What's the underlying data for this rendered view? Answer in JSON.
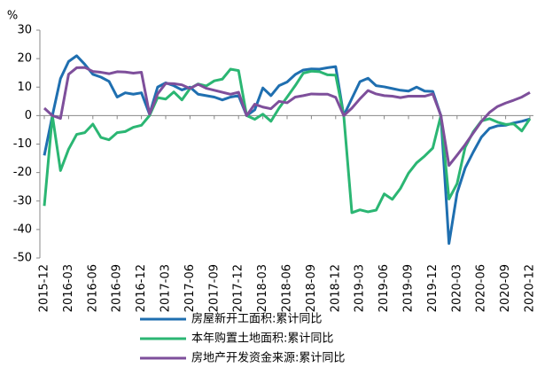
{
  "chart_data": {
    "type": "line",
    "y_label": "%",
    "categories": [
      "2015-12",
      null,
      null,
      "2016-03",
      null,
      null,
      "2016-06",
      null,
      null,
      "2016-09",
      null,
      null,
      "2016-12",
      null,
      null,
      "2017-03",
      null,
      null,
      "2017-06",
      null,
      null,
      "2017-09",
      null,
      null,
      "2017-12",
      null,
      null,
      "2018-03",
      null,
      null,
      "2018-06",
      null,
      null,
      "2018-09",
      null,
      null,
      "2018-12",
      null,
      null,
      "2019-03",
      null,
      null,
      "2019-06",
      null,
      null,
      "2019-09",
      null,
      null,
      "2019-12",
      null,
      null,
      "2020-03",
      null,
      null,
      "2020-06",
      null,
      null,
      "2020-09",
      null,
      null,
      "2020-12"
    ],
    "ylim": [
      -50,
      30
    ],
    "yticks": [
      -50,
      -40,
      -30,
      -20,
      -10,
      0,
      10,
      20,
      30
    ],
    "legend": "bottom",
    "series": [
      {
        "name": "房屋新开工面积:累计同比",
        "color": "#1f6fb0",
        "values": [
          -14,
          0,
          13,
          19,
          21,
          18,
          14.5,
          13.5,
          12,
          6.5,
          8,
          7.5,
          8,
          0.5,
          10,
          11.5,
          10.5,
          9,
          10,
          7.5,
          7,
          6.5,
          5.5,
          6.5,
          7,
          0,
          2,
          9.7,
          7,
          10.5,
          11.8,
          14.4,
          16,
          16.4,
          16.3,
          16.8,
          17.2,
          0,
          6,
          11.9,
          13.1,
          10.5,
          10.1,
          9.5,
          8.9,
          8.6,
          10,
          8.6,
          8.5,
          0,
          -44.9,
          -27.2,
          -18.4,
          -12.8,
          -7.6,
          -4.5,
          -3.6,
          -3.4,
          -2.6,
          -2,
          -1.2
        ]
      },
      {
        "name": "本年购置土地面积:累计同比",
        "color": "#2bb673",
        "values": [
          -31.7,
          0,
          -19.3,
          -11.8,
          -6.6,
          -6,
          -3,
          -7.7,
          -8.5,
          -6,
          -5.6,
          -4.1,
          -3.4,
          0,
          6.3,
          5.8,
          8.3,
          5.5,
          9.5,
          11.1,
          10.4,
          12.2,
          12.8,
          16.3,
          15.8,
          0,
          -1.3,
          0.5,
          -2,
          2.6,
          6.5,
          10.5,
          14.9,
          15.6,
          15.4,
          14.3,
          14.2,
          0,
          -34.1,
          -33.1,
          -33.8,
          -33.2,
          -27.5,
          -29.4,
          -25.6,
          -20.2,
          -16.6,
          -14.2,
          -11.4,
          0,
          -29.3,
          -23.9,
          -11.1,
          -5.7,
          -1.9,
          -1.1,
          -2.3,
          -3.1,
          -2.9,
          -5.4,
          -1.1
        ]
      },
      {
        "name": "房地产开发资金来源:累计同比",
        "color": "#7e4f9b",
        "values": [
          2.6,
          0,
          -1,
          14.5,
          16.8,
          16.9,
          15.5,
          15.2,
          14.7,
          15.4,
          15.3,
          14.9,
          15.2,
          0.5,
          7.6,
          11.3,
          11.2,
          10.8,
          9.5,
          11,
          9.6,
          8.9,
          8.2,
          7.5,
          8.2,
          0,
          4,
          3,
          2.4,
          5,
          4.5,
          6.5,
          7,
          7.6,
          7.5,
          7.5,
          6.4,
          0,
          2.6,
          5.9,
          8.8,
          7.6,
          7,
          6.8,
          6.3,
          6.8,
          6.8,
          6.8,
          7.6,
          0,
          -17.5,
          -13.9,
          -10.2,
          -6.1,
          -2.1,
          1.1,
          3.2,
          4.4,
          5.4,
          6.5,
          8.1
        ]
      }
    ]
  }
}
